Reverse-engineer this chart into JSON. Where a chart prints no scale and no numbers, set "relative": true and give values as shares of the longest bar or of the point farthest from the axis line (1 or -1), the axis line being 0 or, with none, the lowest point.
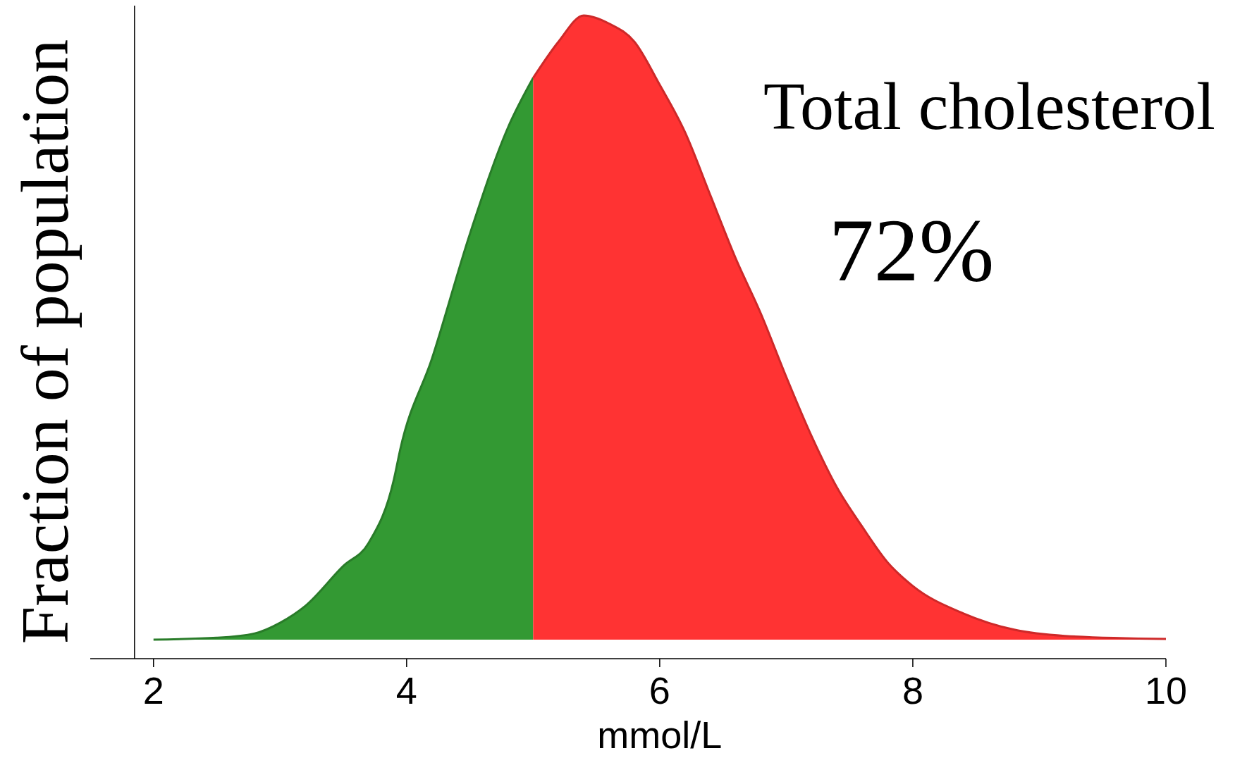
{
  "chart_data": {
    "type": "area",
    "relative": true,
    "xlabel": "mmol/L",
    "ylabel": "Fraction of population",
    "annotations": [
      "Total cholesterol",
      "72%"
    ],
    "xlim": [
      1.5,
      10
    ],
    "xticks": [
      2,
      4,
      6,
      8,
      10
    ],
    "grid": false,
    "ref_lines": [
      {
        "axis": "x",
        "value": 1.85,
        "color": "#000000"
      }
    ],
    "series": [
      {
        "color": "#339933",
        "x": [
          2,
          2.5,
          2.8,
          3,
          3.2,
          3.5,
          3.7,
          3.9,
          3.95,
          4.2,
          4.5,
          4.8,
          5
        ],
        "values": [
          0,
          0.003,
          0.01,
          0.027,
          0.054,
          0.118,
          0.155,
          0.257,
          0.305,
          0.45,
          0.65,
          0.82,
          0.9
        ]
      },
      {
        "color": "#ff3333",
        "x": [
          5,
          5.2,
          5.4,
          5.6,
          5.8,
          6,
          6.2,
          6.4,
          6.6,
          6.8,
          7,
          7.2,
          7.4,
          7.6,
          7.8,
          8,
          8.4,
          8.8,
          9.2,
          10
        ],
        "values": [
          0.9,
          0.958,
          1,
          0.987,
          0.958,
          0.889,
          0.813,
          0.712,
          0.611,
          0.522,
          0.421,
          0.326,
          0.244,
          0.181,
          0.124,
          0.086,
          0.042,
          0.016,
          0.006,
          0.001
        ]
      }
    ]
  }
}
